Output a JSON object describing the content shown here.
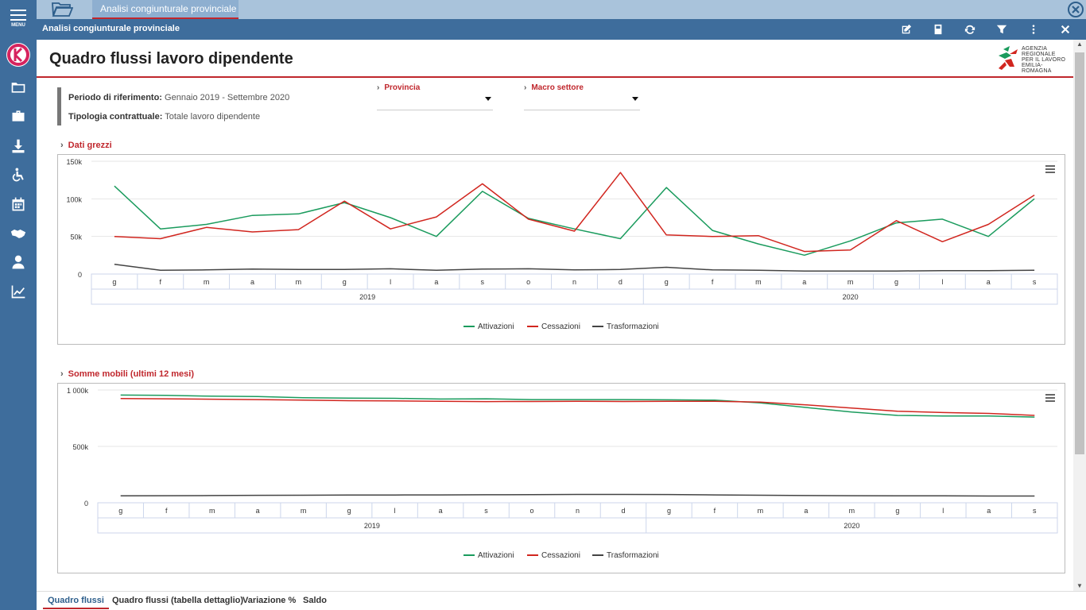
{
  "sidebar": {
    "menu_label": "MENU",
    "icons": [
      "folder-icon",
      "briefcase-icon",
      "download-icon",
      "wheelchair-icon",
      "calendar-icon",
      "handshake-icon",
      "user-icon",
      "chart-line-icon"
    ]
  },
  "tabstrip": {
    "tab_label": "Analisi congiunturale provinciale"
  },
  "titlebar": {
    "title": "Analisi congiunturale provinciale"
  },
  "page": {
    "title": "Quadro flussi lavoro dipendente",
    "brand_lines": [
      "AGENZIA",
      "REGIONALE",
      "PER IL LAVORO",
      "EMILIA-ROMAGNA"
    ]
  },
  "filters": {
    "periodo_label": "Periodo di riferimento:",
    "periodo_value": "Gennaio 2019 - Settembre 2020",
    "tipologia_label": "Tipologia contrattuale:",
    "tipologia_value": "Totale lavoro dipendente",
    "provincia_label": "Provincia",
    "provincia_value": "",
    "macro_label": "Macro settore",
    "macro_value": ""
  },
  "sections": {
    "dati_grezzi": "Dati grezzi",
    "somme_mobili": "Somme mobili (ultimi 12 mesi)"
  },
  "colors": {
    "attivazioni": "#1a9b5d",
    "cessazioni": "#d1261f",
    "trasformazioni": "#444444",
    "accent": "#c0272d",
    "sidebar": "#3e6d9c"
  },
  "chart_data": [
    {
      "type": "line",
      "categories": [
        "g",
        "f",
        "m",
        "a",
        "m",
        "g",
        "l",
        "a",
        "s",
        "o",
        "n",
        "d",
        "g",
        "f",
        "m",
        "a",
        "m",
        "g",
        "l",
        "a",
        "s"
      ],
      "groups": [
        {
          "label": "2019",
          "count": 12
        },
        {
          "label": "2020",
          "count": 9
        }
      ],
      "ylim": [
        0,
        150000
      ],
      "yticks": [
        {
          "v": 0,
          "label": "0"
        },
        {
          "v": 50000,
          "label": "50k"
        },
        {
          "v": 100000,
          "label": "100k"
        },
        {
          "v": 150000,
          "label": "150k"
        }
      ],
      "series": [
        {
          "name": "Attivazioni",
          "values": [
            117000,
            60000,
            66000,
            78000,
            80000,
            95000,
            75000,
            50000,
            110000,
            74000,
            60000,
            47000,
            115000,
            58000,
            40000,
            25000,
            44000,
            68000,
            73000,
            50000,
            100000
          ]
        },
        {
          "name": "Cessazioni",
          "values": [
            50000,
            47000,
            62000,
            56000,
            59000,
            97000,
            60000,
            76000,
            120000,
            73000,
            57000,
            135000,
            52000,
            50000,
            51000,
            30000,
            32000,
            71000,
            43000,
            66000,
            105000
          ]
        },
        {
          "name": "Trasformazioni",
          "values": [
            13000,
            5000,
            5500,
            6500,
            6000,
            6000,
            7000,
            5000,
            6500,
            7000,
            5500,
            6000,
            9000,
            5500,
            5000,
            4000,
            4000,
            4000,
            4500,
            4500,
            5000
          ]
        }
      ],
      "grid": true,
      "legend": "bottom-center"
    },
    {
      "type": "line",
      "categories": [
        "g",
        "f",
        "m",
        "a",
        "m",
        "g",
        "l",
        "a",
        "s",
        "o",
        "n",
        "d",
        "g",
        "f",
        "m",
        "a",
        "m",
        "g",
        "l",
        "a",
        "s"
      ],
      "groups": [
        {
          "label": "2019",
          "count": 12
        },
        {
          "label": "2020",
          "count": 9
        }
      ],
      "ylim": [
        0,
        1000000
      ],
      "yticks": [
        {
          "v": 0,
          "label": "0"
        },
        {
          "v": 500000,
          "label": "500k"
        },
        {
          "v": 1000000,
          "label": "1 000k"
        }
      ],
      "series": [
        {
          "name": "Attivazioni",
          "values": [
            955000,
            952000,
            945000,
            942000,
            932000,
            928000,
            926000,
            920000,
            922000,
            915000,
            915000,
            915000,
            913000,
            910000,
            885000,
            845000,
            805000,
            775000,
            770000,
            770000,
            760000
          ]
        },
        {
          "name": "Cessazioni",
          "values": [
            925000,
            922000,
            918000,
            915000,
            910000,
            905000,
            903000,
            900000,
            897000,
            898000,
            900000,
            898000,
            900000,
            900000,
            892000,
            868000,
            840000,
            812000,
            800000,
            792000,
            775000
          ]
        },
        {
          "name": "Trasformazioni",
          "values": [
            62000,
            63000,
            64000,
            66000,
            67000,
            68000,
            69000,
            70000,
            71000,
            72000,
            74000,
            74000,
            73000,
            70000,
            67000,
            64000,
            63000,
            62000,
            61000,
            60000,
            60000
          ]
        }
      ],
      "grid": true,
      "legend": "bottom-center"
    }
  ],
  "bottom_tabs": [
    "Quadro flussi",
    "Quadro flussi (tabella dettaglio)",
    "Variazione %",
    "Saldo"
  ]
}
